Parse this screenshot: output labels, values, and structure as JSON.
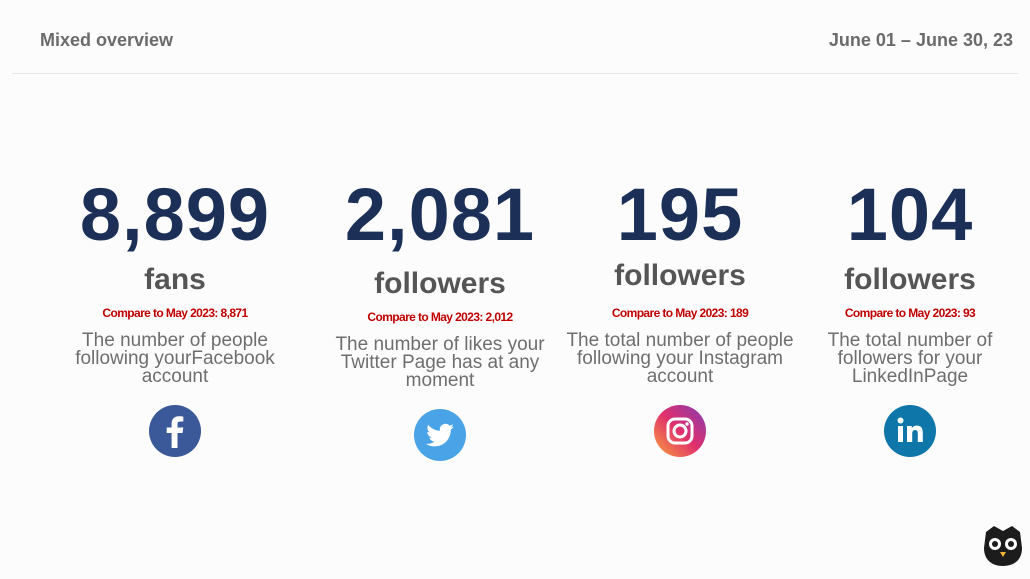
{
  "header": {
    "title": "Mixed overview",
    "date_range": "June 01 – June 30, 23"
  },
  "cards": [
    {
      "value": "8,899",
      "unit": "fans",
      "compare": "Compare to May 2023: 8,871",
      "description": "The number of people following yourFacebook account"
    },
    {
      "value": "2,081",
      "unit": "followers",
      "compare": "Compare to May 2023: 2,012",
      "description": "The number of likes your Twitter Page has at any moment"
    },
    {
      "value": "195",
      "unit": "followers",
      "compare": "Compare to May 2023: 189",
      "description": "The total number of people following your Instagram account"
    },
    {
      "value": "104",
      "unit": "followers",
      "compare": "Compare to May 2023: 93",
      "description": "The total number of followers for your LinkedInPage"
    }
  ]
}
